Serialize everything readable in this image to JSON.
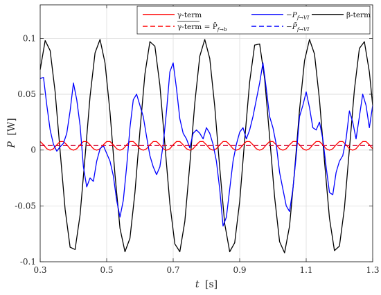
{
  "chart_data": {
    "type": "line",
    "xlabel_var": "t",
    "xlabel_unit": "[s]",
    "ylabel_var": "P",
    "ylabel_unit": "[W]",
    "xlim": [
      0.3,
      1.3
    ],
    "ylim": [
      -0.1,
      0.13
    ],
    "xticks": [
      0.3,
      0.5,
      0.7,
      0.9,
      1.1,
      1.3
    ],
    "xtick_labels": [
      "0.3",
      "0.5",
      "0.7",
      "0.9",
      "1.1",
      "1.3"
    ],
    "yticks": [
      -0.1,
      -0.05,
      0,
      0.05,
      0.1
    ],
    "ytick_labels": [
      "-0.1",
      "-0.05",
      "0",
      "0.05",
      "0.1"
    ],
    "grid": true,
    "legend_position": "top-right",
    "legend": [
      {
        "key": "gamma",
        "text": "γ-term",
        "color": "#ff0000",
        "dash": false
      },
      {
        "key": "gamma_mean",
        "text": "γ-term = P̄",
        "sub": "f→b",
        "color": "#ff0000",
        "dash": true
      },
      {
        "key": "pf",
        "text": "−P",
        "sub": "f→VI",
        "color": "#0000ff",
        "dash": false
      },
      {
        "key": "pf_mean",
        "text": "−P̄",
        "sub": "f→VI",
        "color": "#0000ff",
        "dash": true
      },
      {
        "key": "beta",
        "text": "β-term",
        "color": "#000000",
        "dash": false
      }
    ],
    "series": [
      {
        "key": "beta",
        "color": "#000000",
        "x": [
          0.3,
          0.315,
          0.33,
          0.345,
          0.36,
          0.375,
          0.39,
          0.405,
          0.42,
          0.435,
          0.45,
          0.465,
          0.48,
          0.495,
          0.51,
          0.525,
          0.54,
          0.555,
          0.57,
          0.585,
          0.6,
          0.615,
          0.63,
          0.645,
          0.66,
          0.675,
          0.69,
          0.705,
          0.72,
          0.735,
          0.75,
          0.765,
          0.78,
          0.795,
          0.81,
          0.825,
          0.84,
          0.855,
          0.87,
          0.885,
          0.9,
          0.915,
          0.93,
          0.945,
          0.96,
          0.975,
          0.99,
          1.005,
          1.02,
          1.035,
          1.05,
          1.065,
          1.08,
          1.095,
          1.11,
          1.125,
          1.14,
          1.155,
          1.17,
          1.185,
          1.2,
          1.215,
          1.23,
          1.245,
          1.26,
          1.275,
          1.29,
          1.3
        ],
        "y": [
          0.072,
          0.098,
          0.089,
          0.052,
          -0.001,
          -0.053,
          -0.087,
          -0.089,
          -0.058,
          -0.006,
          0.048,
          0.087,
          0.099,
          0.078,
          0.034,
          -0.022,
          -0.07,
          -0.091,
          -0.079,
          -0.038,
          0.017,
          0.068,
          0.097,
          0.093,
          0.058,
          0.005,
          -0.048,
          -0.084,
          -0.091,
          -0.064,
          -0.013,
          0.042,
          0.084,
          0.099,
          0.082,
          0.039,
          -0.016,
          -0.066,
          -0.091,
          -0.083,
          -0.046,
          0.009,
          0.061,
          0.094,
          0.095,
          0.064,
          0.012,
          -0.042,
          -0.082,
          -0.092,
          -0.068,
          -0.019,
          0.036,
          0.08,
          0.099,
          0.086,
          0.045,
          -0.01,
          -0.061,
          -0.09,
          -0.086,
          -0.052,
          0.001,
          0.054,
          0.091,
          0.097,
          0.07,
          0.04
        ]
      },
      {
        "key": "gamma",
        "color": "#ff0000",
        "x": [
          0.3,
          0.31,
          0.32,
          0.33,
          0.34,
          0.35,
          0.36,
          0.37,
          0.38,
          0.39,
          0.4,
          0.41,
          0.42,
          0.43,
          0.44,
          0.45,
          0.46,
          0.47,
          0.48,
          0.49,
          0.5,
          0.51,
          0.52,
          0.53,
          0.54,
          0.55,
          0.56,
          0.57,
          0.58,
          0.59,
          0.6,
          0.61,
          0.62,
          0.63,
          0.64,
          0.65,
          0.66,
          0.67,
          0.68,
          0.69,
          0.7,
          0.71,
          0.72,
          0.73,
          0.74,
          0.75,
          0.76,
          0.77,
          0.78,
          0.79,
          0.8,
          0.81,
          0.82,
          0.83,
          0.84,
          0.85,
          0.86,
          0.87,
          0.88,
          0.89,
          0.9,
          0.91,
          0.92,
          0.93,
          0.94,
          0.95,
          0.96,
          0.97,
          0.98,
          0.99,
          1.0,
          1.01,
          1.02,
          1.03,
          1.04,
          1.05,
          1.06,
          1.07,
          1.08,
          1.09,
          1.1,
          1.11,
          1.12,
          1.13,
          1.14,
          1.15,
          1.16,
          1.17,
          1.18,
          1.19,
          1.2,
          1.21,
          1.22,
          1.23,
          1.24,
          1.25,
          1.26,
          1.27,
          1.28,
          1.29,
          1.3
        ],
        "y": [
          0.0076,
          0.0047,
          0.0012,
          -0.0001,
          0.0012,
          0.0047,
          0.0076,
          0.0076,
          0.0047,
          0.0012,
          -0.0001,
          0.0012,
          0.0047,
          0.0076,
          0.0076,
          0.0047,
          0.0012,
          -0.0001,
          0.0012,
          0.0047,
          0.0076,
          0.0076,
          0.0047,
          0.0012,
          -0.0001,
          0.0012,
          0.0047,
          0.0076,
          0.0076,
          0.0047,
          0.0012,
          -0.0001,
          0.0012,
          0.0047,
          0.0076,
          0.0076,
          0.0047,
          0.0012,
          -0.0001,
          0.0012,
          0.0047,
          0.0076,
          0.0076,
          0.0047,
          0.0012,
          -0.0001,
          0.0012,
          0.0047,
          0.0076,
          0.0076,
          0.0047,
          0.0012,
          -0.0001,
          0.0012,
          0.0047,
          0.0076,
          0.0076,
          0.0047,
          0.0012,
          -0.0001,
          0.0012,
          0.0047,
          0.0076,
          0.0076,
          0.0047,
          0.0012,
          -0.0001,
          0.0012,
          0.0047,
          0.0076,
          0.0076,
          0.0047,
          0.0012,
          -0.0001,
          0.0012,
          0.0047,
          0.0076,
          0.0076,
          0.0047,
          0.0012,
          -0.0001,
          0.0012,
          0.0047,
          0.0076,
          0.0076,
          0.0047,
          0.0012,
          -0.0001,
          0.0012,
          0.0047,
          0.0076,
          0.0076,
          0.0047,
          0.0012,
          -0.0001,
          0.0012,
          0.0047,
          0.0076,
          0.0076,
          0.0047,
          0.0012
        ]
      },
      {
        "key": "pf",
        "color": "#0000ff",
        "x": [
          0.3,
          0.31,
          0.32,
          0.33,
          0.34,
          0.35,
          0.36,
          0.37,
          0.38,
          0.39,
          0.4,
          0.41,
          0.42,
          0.43,
          0.44,
          0.45,
          0.46,
          0.47,
          0.48,
          0.49,
          0.5,
          0.51,
          0.52,
          0.53,
          0.54,
          0.55,
          0.56,
          0.57,
          0.58,
          0.59,
          0.6,
          0.61,
          0.62,
          0.63,
          0.64,
          0.65,
          0.66,
          0.67,
          0.68,
          0.69,
          0.7,
          0.71,
          0.72,
          0.73,
          0.74,
          0.75,
          0.76,
          0.77,
          0.78,
          0.79,
          0.8,
          0.81,
          0.82,
          0.83,
          0.84,
          0.85,
          0.86,
          0.87,
          0.88,
          0.89,
          0.9,
          0.91,
          0.92,
          0.93,
          0.94,
          0.95,
          0.96,
          0.97,
          0.98,
          0.99,
          1.0,
          1.01,
          1.02,
          1.03,
          1.04,
          1.05,
          1.06,
          1.07,
          1.08,
          1.09,
          1.1,
          1.11,
          1.12,
          1.13,
          1.14,
          1.15,
          1.16,
          1.17,
          1.18,
          1.19,
          1.2,
          1.21,
          1.22,
          1.23,
          1.24,
          1.25,
          1.26,
          1.27,
          1.28,
          1.29,
          1.3
        ],
        "y": [
          0.064,
          0.065,
          0.04,
          0.018,
          0.005,
          -0.001,
          0.003,
          0.006,
          0.015,
          0.035,
          0.06,
          0.045,
          0.022,
          -0.015,
          -0.033,
          -0.025,
          -0.028,
          -0.01,
          0.001,
          0.004,
          -0.003,
          -0.01,
          -0.023,
          -0.045,
          -0.06,
          -0.045,
          -0.015,
          0.02,
          0.045,
          0.05,
          0.04,
          0.03,
          0.012,
          -0.005,
          -0.015,
          -0.022,
          -0.015,
          0.005,
          0.035,
          0.07,
          0.078,
          0.055,
          0.028,
          0.015,
          0.01,
          0.002,
          0.015,
          0.018,
          0.015,
          0.01,
          0.02,
          0.015,
          0.005,
          -0.01,
          -0.035,
          -0.068,
          -0.06,
          -0.035,
          -0.01,
          0.005,
          0.016,
          0.02,
          0.01,
          0.018,
          0.03,
          0.045,
          0.06,
          0.078,
          0.055,
          0.03,
          0.02,
          0.005,
          -0.02,
          -0.035,
          -0.05,
          -0.055,
          -0.035,
          -0.005,
          0.03,
          0.04,
          0.052,
          0.038,
          0.02,
          0.018,
          0.025,
          0.01,
          -0.015,
          -0.038,
          -0.04,
          -0.02,
          -0.01,
          -0.005,
          0.01,
          0.035,
          0.025,
          0.01,
          0.03,
          0.05,
          0.04,
          0.02,
          0.04
        ]
      },
      {
        "key": "pf_mean",
        "color": "#0000ff",
        "dash": true,
        "x": [
          0.3,
          1.3
        ],
        "y": [
          0.0039,
          0.0039
        ]
      },
      {
        "key": "gamma_mean",
        "color": "#ff0000",
        "dash": true,
        "x": [
          0.3,
          1.3
        ],
        "y": [
          0.0041,
          0.0041
        ]
      }
    ]
  }
}
